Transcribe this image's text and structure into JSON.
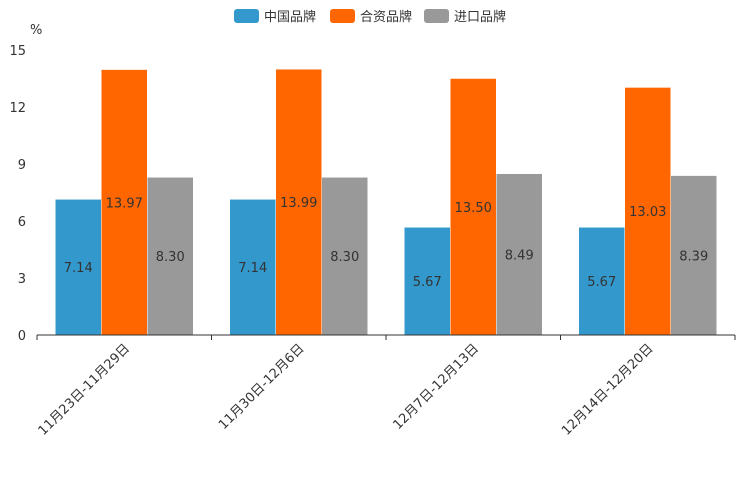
{
  "chart_data": {
    "type": "bar",
    "title": "",
    "xlabel": "",
    "ylabel": "%",
    "ylim": [
      0,
      15
    ],
    "yticks": [
      0,
      3,
      6,
      9,
      12,
      15
    ],
    "legend_position": "top-center",
    "grid": false,
    "categories": [
      "11月23日-11月29日",
      "11月30日-12月6日",
      "12月7日-12月13日",
      "12月14日-12月20日"
    ],
    "series": [
      {
        "name": "中国品牌",
        "color": "#3399cc",
        "values": [
          7.14,
          7.14,
          5.67,
          5.67
        ]
      },
      {
        "name": "合资品牌",
        "color": "#ff6600",
        "values": [
          13.97,
          13.99,
          13.5,
          13.03
        ]
      },
      {
        "name": "进口品牌",
        "color": "#999999",
        "values": [
          8.3,
          8.3,
          8.49,
          8.39
        ]
      }
    ]
  }
}
